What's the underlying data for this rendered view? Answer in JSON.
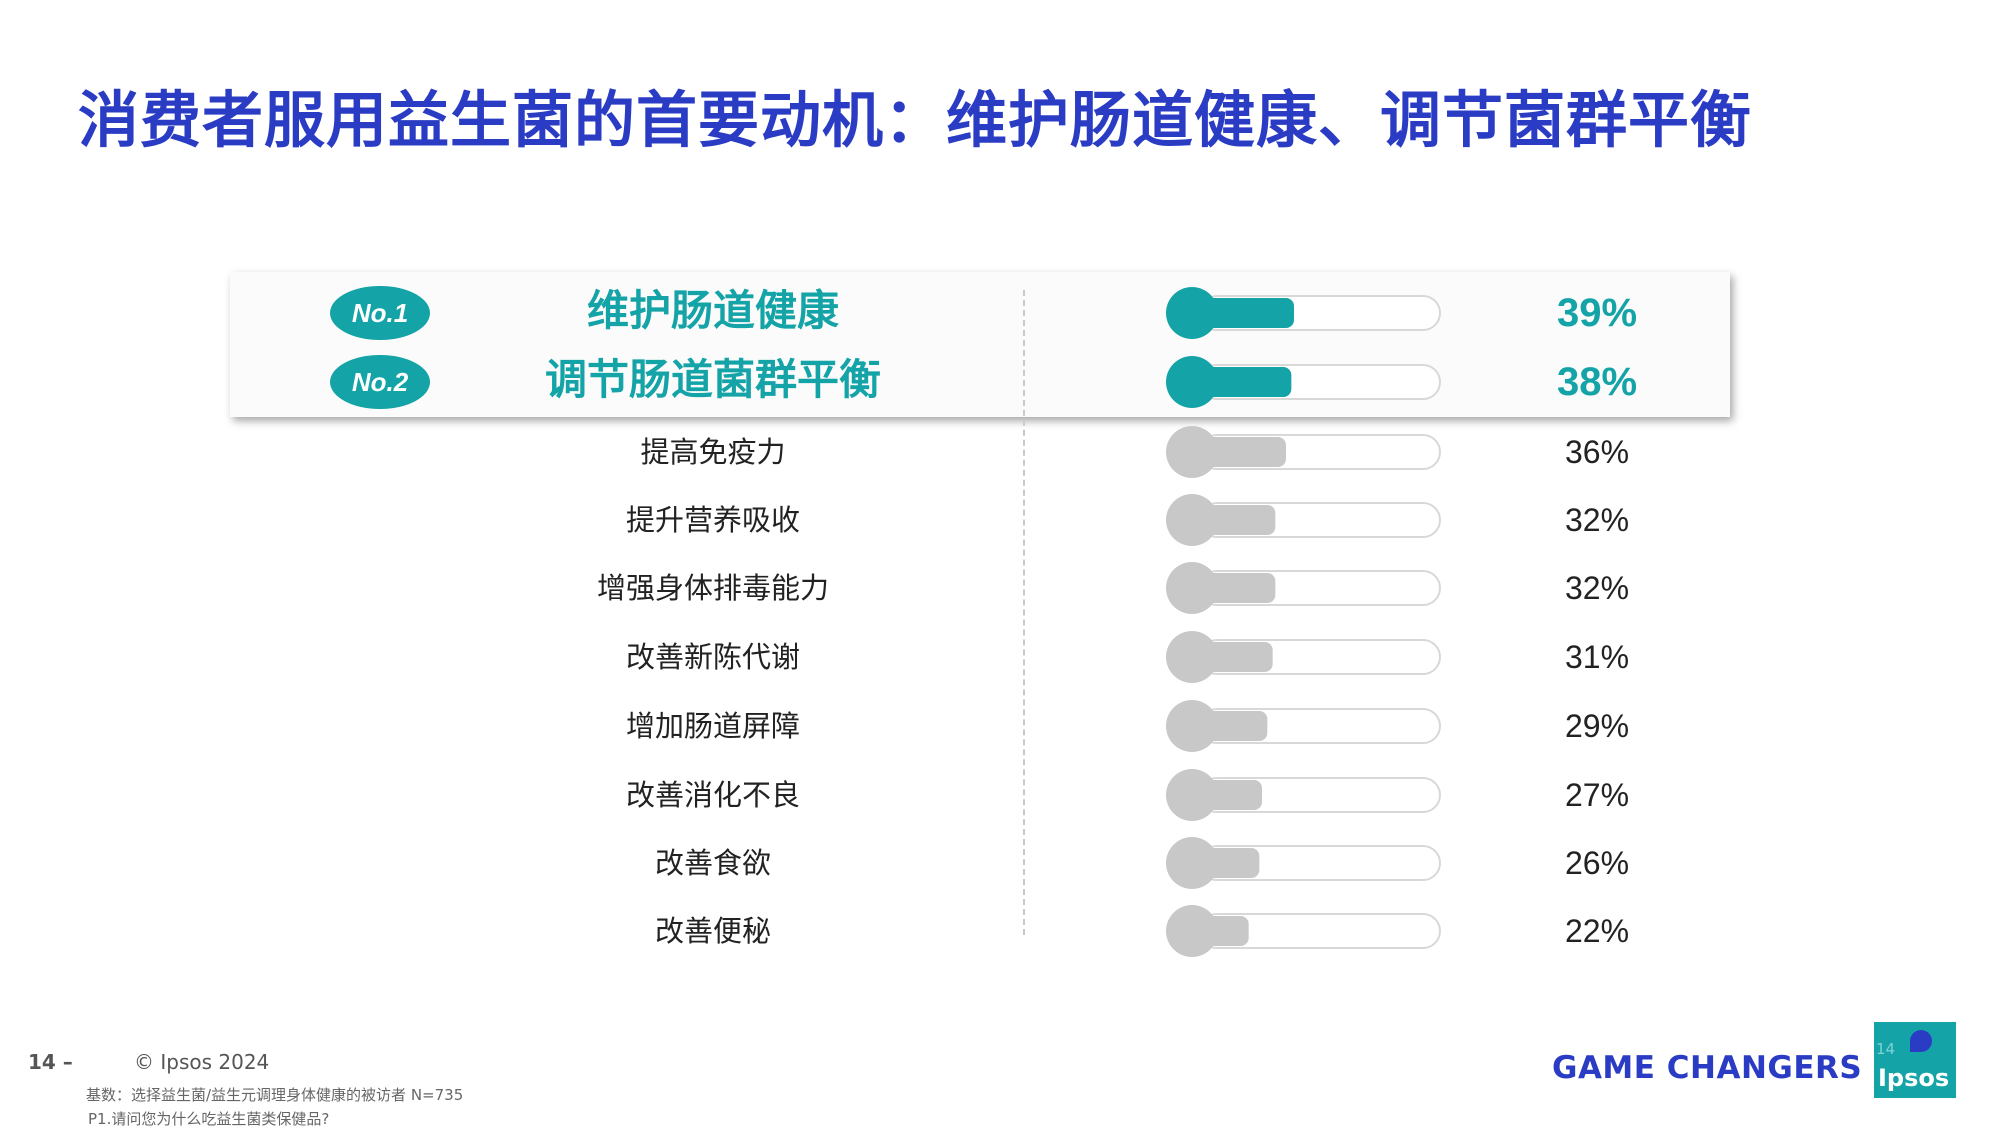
{
  "title": "消费者服用益生菌的首要动机：维护肠道健康、调节菌群平衡",
  "chart_data": {
    "type": "bar",
    "categories": [
      "维护肠道健康",
      "调节肠道菌群平衡",
      "提高免疫力",
      "提升营养吸收",
      "增强身体排毒能力",
      "改善新陈代谢",
      "增加肠道屏障",
      "改善消化不良",
      "改善食欲",
      "改善便秘"
    ],
    "values": [
      39,
      38,
      36,
      32,
      32,
      31,
      29,
      27,
      26,
      22
    ],
    "value_labels": [
      "39%",
      "38%",
      "36%",
      "32%",
      "32%",
      "31%",
      "29%",
      "27%",
      "26%",
      "22%"
    ],
    "rank_badges": [
      "No.1",
      "No.2"
    ],
    "xlim": [
      0,
      100
    ],
    "highlight_color": "#14a3a7",
    "normal_color": "#c8c8c8"
  },
  "footer": {
    "page_number": "14 –",
    "copyright": "© Ipsos 2024",
    "base_note": "基数：选择益生菌/益生元调理身体健康的被访者  N=735",
    "question_note": "P1.请问您为什么吃益生菌类保健品?",
    "tagline": "GAME CHANGERS",
    "logo_page": "14",
    "logo_text": "Ipsos"
  }
}
